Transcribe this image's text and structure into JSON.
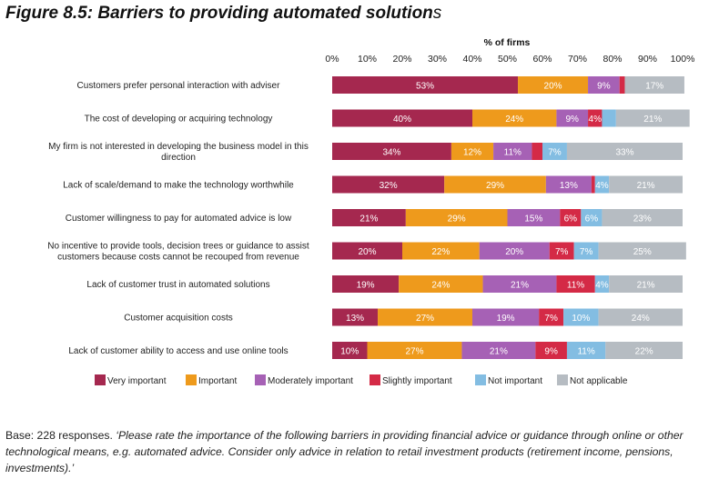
{
  "figure": {
    "title_main": "Figure 8.5: Barriers to providing automated solution",
    "title_tail": "s"
  },
  "note": {
    "base": "Base: 228 responses.",
    "quote": "‘Please rate the importance of the following barriers in providing financial advice or guidance through online or other technological means, e.g. automated advice. Consider only advice in relation to retail investment products (retirement income, pensions, investments).’"
  },
  "chart_data": {
    "type": "bar",
    "orientation": "horizontal",
    "stacked": true,
    "title": "",
    "xlabel": "% of firms",
    "ylabel": "",
    "xlim": [
      0,
      100
    ],
    "x_ticks": [
      "0%",
      "10%",
      "20%",
      "30%",
      "40%",
      "50%",
      "60%",
      "70%",
      "80%",
      "90%",
      "100%"
    ],
    "axis_position": "top",
    "grid": false,
    "legend_position": "bottom",
    "categories": [
      [
        "Customers prefer personal interaction with adviser"
      ],
      [
        "The cost of developing or acquiring technology"
      ],
      [
        "My firm is not interested in developing the business model in this",
        "direction"
      ],
      [
        "Lack of scale/demand to make the technology worthwhile"
      ],
      [
        "Customer willingness to pay for automated advice is low"
      ],
      [
        "No incentive to provide tools, decision trees or guidance to assist",
        "customers because costs cannot be recouped from revenue"
      ],
      [
        "Lack of customer trust in automated solutions"
      ],
      [
        "Customer acquisition costs"
      ],
      [
        "Lack of customer ability to access and use online tools"
      ]
    ],
    "series": [
      {
        "name": "Very important",
        "color": "#a5284f",
        "values": [
          53,
          40,
          34,
          32,
          21,
          20,
          19,
          13,
          10
        ],
        "labels": [
          "53%",
          "40%",
          "34%",
          "32%",
          "21%",
          "20%",
          "19%",
          "13%",
          "10%"
        ]
      },
      {
        "name": "Important",
        "color": "#ee9a1c",
        "values": [
          20,
          24,
          12,
          29,
          29,
          22,
          24,
          27,
          27
        ],
        "labels": [
          "20%",
          "24%",
          "12%",
          "29%",
          "29%",
          "22%",
          "24%",
          "27%",
          "27%"
        ]
      },
      {
        "name": "Moderately important",
        "color": "#a661b5",
        "values": [
          9,
          9,
          11,
          13,
          15,
          20,
          21,
          19,
          21
        ],
        "labels": [
          "9%",
          "9%",
          "11%",
          "13%",
          "15%",
          "20%",
          "21%",
          "19%",
          "21%"
        ]
      },
      {
        "name": "Slightly important",
        "color": "#d42a46",
        "values": [
          1.5,
          4,
          3,
          1,
          6,
          7,
          11,
          7,
          9
        ],
        "labels": [
          "",
          "4%",
          "",
          "",
          "6%",
          "7%",
          "11%",
          "7%",
          "9%"
        ]
      },
      {
        "name": "Not important",
        "color": "#83bde2",
        "values": [
          0,
          4,
          7,
          4,
          6,
          7,
          4,
          10,
          11
        ],
        "labels": [
          "",
          "",
          "7%",
          "4%",
          "6%",
          "7%",
          "4%",
          "10%",
          "11%"
        ]
      },
      {
        "name": "Not applicable",
        "color": "#b6bcc2",
        "values": [
          17,
          21,
          33,
          21,
          23,
          25,
          21,
          24,
          22
        ],
        "labels": [
          "17%",
          "21%",
          "33%",
          "21%",
          "23%",
          "25%",
          "21%",
          "24%",
          "22%"
        ]
      }
    ]
  }
}
